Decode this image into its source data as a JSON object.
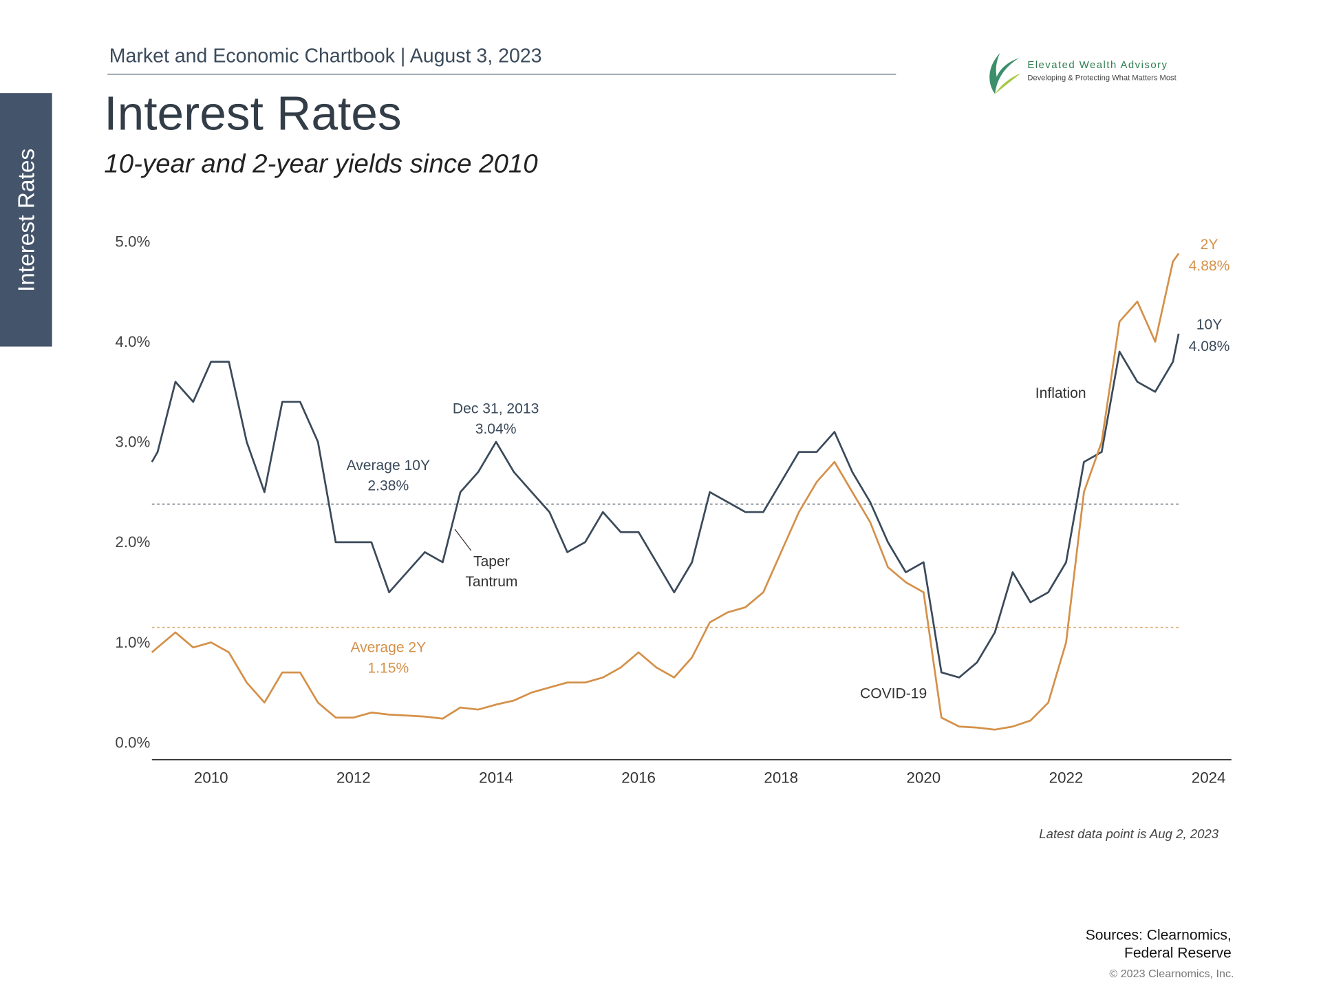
{
  "header": {
    "chartbook": "Market and Economic Chartbook | August 3, 2023",
    "brand": "Elevated Wealth Advisory",
    "tagline": "Developing & Protecting What Matters Most",
    "side_tab": "Interest Rates"
  },
  "chart_data": {
    "type": "line",
    "title": "Interest Rates",
    "subtitle": "10-year and 2-year yields since 2010",
    "x": [
      2009.17,
      2009.25,
      2009.5,
      2009.75,
      2010.0,
      2010.25,
      2010.5,
      2010.75,
      2011.0,
      2011.25,
      2011.5,
      2011.75,
      2012.0,
      2012.25,
      2012.5,
      2012.75,
      2013.0,
      2013.25,
      2013.5,
      2013.75,
      2014.0,
      2014.25,
      2014.5,
      2014.75,
      2015.0,
      2015.25,
      2015.5,
      2015.75,
      2016.0,
      2016.25,
      2016.5,
      2016.75,
      2017.0,
      2017.25,
      2017.5,
      2017.75,
      2018.0,
      2018.25,
      2018.5,
      2018.75,
      2019.0,
      2019.25,
      2019.5,
      2019.75,
      2020.0,
      2020.25,
      2020.5,
      2020.75,
      2021.0,
      2021.25,
      2021.5,
      2021.75,
      2022.0,
      2022.25,
      2022.5,
      2022.75,
      2023.0,
      2023.25,
      2023.5,
      2023.58
    ],
    "series": [
      {
        "name": "10Y",
        "color": "#3b4a5a",
        "end_label": "4.08%",
        "values": [
          2.8,
          2.9,
          3.6,
          3.4,
          3.8,
          3.8,
          3.0,
          2.5,
          3.4,
          3.4,
          3.0,
          2.0,
          2.0,
          2.0,
          1.5,
          1.7,
          1.9,
          1.8,
          2.5,
          2.7,
          3.0,
          2.7,
          2.5,
          2.3,
          1.9,
          2.0,
          2.3,
          2.1,
          2.1,
          1.8,
          1.5,
          1.8,
          2.5,
          2.4,
          2.3,
          2.3,
          2.6,
          2.9,
          2.9,
          3.1,
          2.7,
          2.4,
          2.0,
          1.7,
          1.8,
          0.7,
          0.65,
          0.8,
          1.1,
          1.7,
          1.4,
          1.5,
          1.8,
          2.8,
          2.9,
          3.9,
          3.6,
          3.5,
          3.8,
          4.08
        ]
      },
      {
        "name": "2Y",
        "color": "#d4914a",
        "end_label": "4.88%",
        "values": [
          0.9,
          0.95,
          1.1,
          0.95,
          1.0,
          0.9,
          0.6,
          0.4,
          0.7,
          0.7,
          0.4,
          0.25,
          0.25,
          0.3,
          0.28,
          0.27,
          0.26,
          0.24,
          0.35,
          0.33,
          0.38,
          0.42,
          0.5,
          0.55,
          0.6,
          0.6,
          0.65,
          0.75,
          0.9,
          0.75,
          0.65,
          0.85,
          1.2,
          1.3,
          1.35,
          1.5,
          1.9,
          2.3,
          2.6,
          2.8,
          2.5,
          2.2,
          1.75,
          1.6,
          1.5,
          0.25,
          0.16,
          0.15,
          0.13,
          0.16,
          0.22,
          0.4,
          1.0,
          2.5,
          3.0,
          4.2,
          4.4,
          4.0,
          4.8,
          4.88
        ]
      }
    ],
    "xlim": [
      2009.17,
      2024.32
    ],
    "xticks": [
      2010,
      2012,
      2014,
      2016,
      2018,
      2020,
      2022,
      2024
    ],
    "ylim": [
      -0.17,
      5.05
    ],
    "yticks": [
      {
        "value": 0,
        "label": "0.0%"
      },
      {
        "value": 1,
        "label": "1.0%"
      },
      {
        "value": 2,
        "label": "2.0%"
      },
      {
        "value": 3,
        "label": "3.0%"
      },
      {
        "value": 4,
        "label": "4.0%"
      },
      {
        "value": 5,
        "label": "5.0%"
      }
    ],
    "reference_lines": [
      {
        "label": "Average 10Y",
        "value": 2.38,
        "value_label": "2.38%",
        "color": "#3b4a5a"
      },
      {
        "label": "Average 2Y",
        "value": 1.15,
        "value_label": "1.15%",
        "color": "#d4914a"
      }
    ],
    "peak_annotation": {
      "label": "Dec 31, 2013",
      "value": 3.04,
      "value_label": "3.04%"
    },
    "annotations": [
      {
        "lines": [
          "Taper",
          "Tantrum"
        ]
      },
      {
        "lines": [
          "Inflation"
        ]
      },
      {
        "lines": [
          "COVID-19"
        ]
      }
    ],
    "note": "Latest data point is Aug 2, 2023"
  },
  "footer": {
    "sources": [
      "Sources: Clearnomics,",
      "Federal Reserve"
    ],
    "copyright": "© 2023 Clearnomics, Inc."
  }
}
